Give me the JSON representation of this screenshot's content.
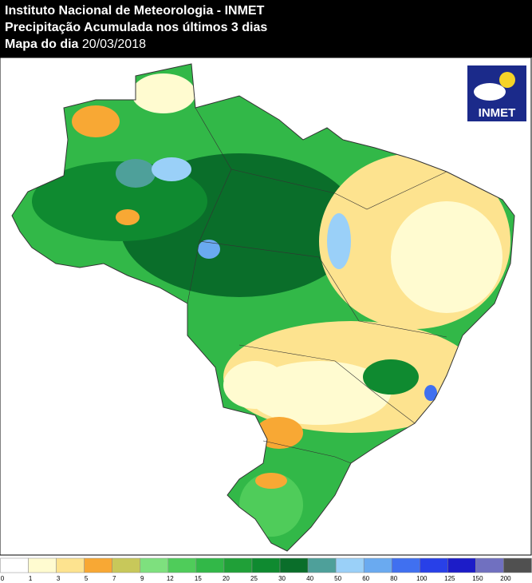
{
  "header": {
    "title": "Instituto Nacional de Meteorologia - INMET",
    "subtitle": "Precipitação Acumulada nos últimos 3 dias",
    "map_label": "Mapa do dia",
    "date": "20/03/2018"
  },
  "logo": {
    "text": "INMET"
  },
  "legend": {
    "bins": [
      0,
      1,
      3,
      5,
      7,
      9,
      12,
      15,
      20,
      25,
      30,
      40,
      50,
      60,
      80,
      100,
      125,
      150,
      200
    ],
    "colors": [
      "#ffffff",
      "#fffbd0",
      "#fde38f",
      "#f8a834",
      "#c8c85a",
      "#7ee07e",
      "#4fcc5a",
      "#32b848",
      "#20a038",
      "#0f8a30",
      "#0a6e2a",
      "#4ea09a",
      "#9ad0f8",
      "#6aaaf0",
      "#4070f0",
      "#2840e8",
      "#1c1cc8",
      "#7070c0",
      "#505050"
    ]
  }
}
